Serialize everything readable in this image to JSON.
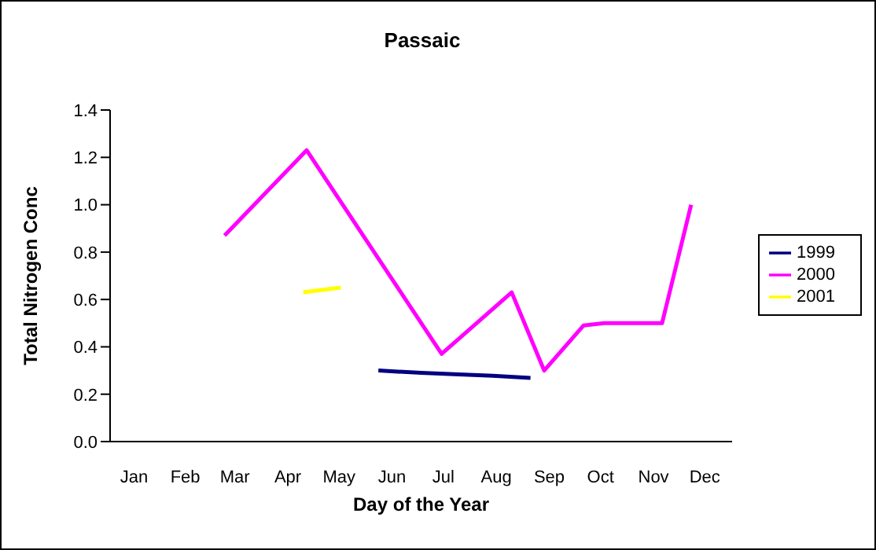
{
  "chart_data": {
    "type": "line",
    "title": "Passaic",
    "xlabel": "Day of the Year",
    "ylabel": "Total Nitrogen Conc",
    "xlim": [
      "--01-01",
      "--12-31"
    ],
    "xticks": [
      {
        "value": "--01-15",
        "label": "Jan"
      },
      {
        "value": "--02-14",
        "label": "Feb"
      },
      {
        "value": "--03-15",
        "label": "Mar"
      },
      {
        "value": "--04-15",
        "label": "Apr"
      },
      {
        "value": "--05-15",
        "label": "May"
      },
      {
        "value": "--06-15",
        "label": "Jun"
      },
      {
        "value": "--07-15",
        "label": "Jul"
      },
      {
        "value": "--08-15",
        "label": "Aug"
      },
      {
        "value": "--09-15",
        "label": "Sep"
      },
      {
        "value": "--10-15",
        "label": "Oct"
      },
      {
        "value": "--11-15",
        "label": "Nov"
      },
      {
        "value": "--12-15",
        "label": "Dec"
      }
    ],
    "ylim": [
      0,
      1.4
    ],
    "yticks": [
      {
        "value": 0,
        "label": "0.0"
      },
      {
        "value": 0.2,
        "label": "0.2"
      },
      {
        "value": 0.4,
        "label": "0.4"
      },
      {
        "value": 0.6,
        "label": "0.6"
      },
      {
        "value": 0.8,
        "label": "0.8"
      },
      {
        "value": 1.0,
        "label": "1.0"
      },
      {
        "value": 1.2,
        "label": "1.2"
      },
      {
        "value": 1.4,
        "label": "1.4"
      }
    ],
    "grid": false,
    "legend": "right",
    "marker": "none",
    "line_style": "solid",
    "series": [
      {
        "name": "1999",
        "color": "#000080",
        "x": [
          "--06-07",
          "--07-02",
          "--07-24",
          "--08-13",
          "--09-04"
        ],
        "values": [
          0.3,
          0.29,
          0.284,
          0.278,
          0.269
        ]
      },
      {
        "name": "2000",
        "color": "#ff00ff",
        "x": [
          "--03-09",
          "--04-26",
          "--07-14",
          "--08-24",
          "--09-12",
          "--10-05",
          "--10-17",
          "--11-20",
          "--12-07"
        ],
        "values": [
          0.87,
          1.23,
          0.37,
          0.63,
          0.3,
          0.49,
          0.5,
          0.5,
          1.0
        ]
      },
      {
        "name": "2001",
        "color": "#ffff00",
        "x": [
          "--04-24",
          "--05-16"
        ],
        "values": [
          0.63,
          0.65
        ]
      }
    ]
  }
}
